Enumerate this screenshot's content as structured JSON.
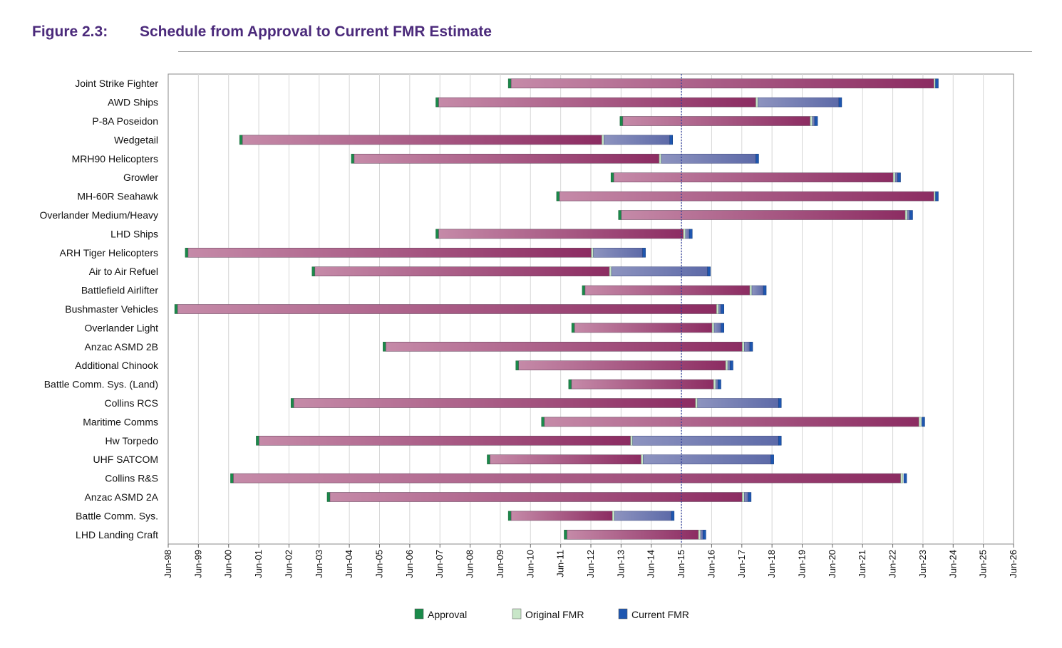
{
  "figure": {
    "number": "Figure 2.3:",
    "title": "Schedule from Approval to Current FMR Estimate"
  },
  "chart_data": {
    "type": "bar",
    "orientation": "horizontal-gantt",
    "x_ticks": [
      "Jun-98",
      "Jun-99",
      "Jun-00",
      "Jun-01",
      "Jun-02",
      "Jun-03",
      "Jun-04",
      "Jun-05",
      "Jun-06",
      "Jun-07",
      "Jun-08",
      "Jun-09",
      "Jun-10",
      "Jun-11",
      "Jun-12",
      "Jun-13",
      "Jun-14",
      "Jun-15",
      "Jun-16",
      "Jun-17",
      "Jun-18",
      "Jun-19",
      "Jun-20",
      "Jun-21",
      "Jun-22",
      "Jun-23",
      "Jun-24",
      "Jun-25",
      "Jun-26"
    ],
    "xlim": [
      1998.5,
      2026.5
    ],
    "reference_line": 2015.5,
    "grid": "vertical",
    "legend_position": "bottom",
    "series": [
      {
        "name": "Approval",
        "color": "#1a8a4a"
      },
      {
        "name": "Original FMR",
        "color": "#c8e6c8"
      },
      {
        "name": "Current FMR",
        "color": "#1e56b0"
      }
    ],
    "rows": [
      {
        "label": "Joint Strike Fighter",
        "approval": 2009.8,
        "original_fmr": 2023.9,
        "current_fmr": 2023.95
      },
      {
        "label": "AWD Ships",
        "approval": 2007.4,
        "original_fmr": 2018.0,
        "current_fmr": 2020.75
      },
      {
        "label": "P-8A Poseidon",
        "approval": 2013.5,
        "original_fmr": 2019.8,
        "current_fmr": 2019.95
      },
      {
        "label": "Wedgetail",
        "approval": 2000.9,
        "original_fmr": 2012.9,
        "current_fmr": 2015.15
      },
      {
        "label": "MRH90 Helicopters",
        "approval": 2004.6,
        "original_fmr": 2014.8,
        "current_fmr": 2018.0
      },
      {
        "label": "Growler",
        "approval": 2013.2,
        "original_fmr": 2022.55,
        "current_fmr": 2022.7
      },
      {
        "label": "MH-60R Seahawk",
        "approval": 2011.4,
        "original_fmr": 2023.9,
        "current_fmr": 2023.95
      },
      {
        "label": "Overlander Medium/Heavy",
        "approval": 2013.45,
        "original_fmr": 2022.95,
        "current_fmr": 2023.1
      },
      {
        "label": "LHD Ships",
        "approval": 2007.4,
        "original_fmr": 2015.6,
        "current_fmr": 2015.8
      },
      {
        "label": "ARH Tiger Helicopters",
        "approval": 1999.1,
        "original_fmr": 2012.55,
        "current_fmr": 2014.25
      },
      {
        "label": "Air to Air Refuel",
        "approval": 2003.3,
        "original_fmr": 2013.15,
        "current_fmr": 2016.4
      },
      {
        "label": "Battlefield Airlifter",
        "approval": 2012.25,
        "original_fmr": 2017.8,
        "current_fmr": 2018.25
      },
      {
        "label": "Bushmaster Vehicles",
        "approval": 1998.75,
        "original_fmr": 2016.7,
        "current_fmr": 2016.85
      },
      {
        "label": "Overlander Light",
        "approval": 2011.9,
        "original_fmr": 2016.55,
        "current_fmr": 2016.85
      },
      {
        "label": "Anzac ASMD 2B",
        "approval": 2005.65,
        "original_fmr": 2017.55,
        "current_fmr": 2017.8
      },
      {
        "label": "Additional Chinook",
        "approval": 2010.05,
        "original_fmr": 2017.0,
        "current_fmr": 2017.15
      },
      {
        "label": "Battle Comm. Sys. (Land)",
        "approval": 2011.8,
        "original_fmr": 2016.6,
        "current_fmr": 2016.75
      },
      {
        "label": "Collins RCS",
        "approval": 2002.6,
        "original_fmr": 2016.0,
        "current_fmr": 2018.75
      },
      {
        "label": "Maritime Comms",
        "approval": 2010.9,
        "original_fmr": 2023.4,
        "current_fmr": 2023.5
      },
      {
        "label": "Hw Torpedo",
        "approval": 2001.45,
        "original_fmr": 2013.85,
        "current_fmr": 2018.75
      },
      {
        "label": "UHF SATCOM",
        "approval": 2009.1,
        "original_fmr": 2014.2,
        "current_fmr": 2018.5
      },
      {
        "label": "Collins R&S",
        "approval": 2000.6,
        "original_fmr": 2022.8,
        "current_fmr": 2022.9
      },
      {
        "label": "Anzac ASMD 2A",
        "approval": 2003.8,
        "original_fmr": 2017.55,
        "current_fmr": 2017.75
      },
      {
        "label": "Battle Comm. Sys.",
        "approval": 2009.8,
        "original_fmr": 2013.25,
        "current_fmr": 2015.2
      },
      {
        "label": "LHD Landing Craft",
        "approval": 2011.65,
        "original_fmr": 2016.1,
        "current_fmr": 2016.25
      }
    ]
  }
}
